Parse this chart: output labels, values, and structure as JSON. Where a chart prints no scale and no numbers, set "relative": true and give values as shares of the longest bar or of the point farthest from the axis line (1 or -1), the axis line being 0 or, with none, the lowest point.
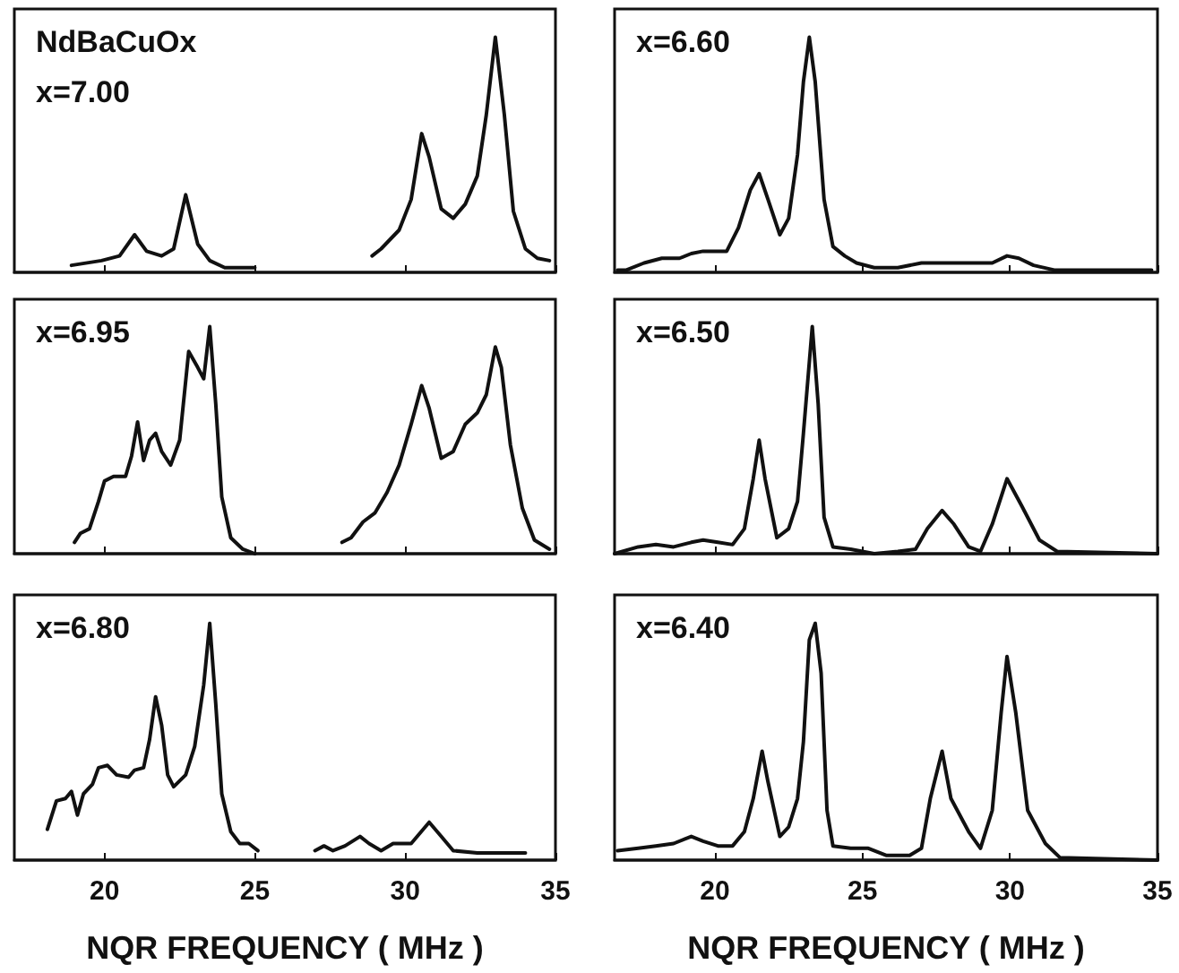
{
  "chart_data": [
    {
      "type": "line",
      "relative": true,
      "annotations": [
        "NdBaCuOx",
        "x=7.00"
      ],
      "xlim": [
        17,
        35
      ],
      "xticks": [
        20,
        25,
        30,
        35
      ],
      "tick_labels": false,
      "marker": "none",
      "x": [
        18.9,
        19.9,
        20.5,
        21.0,
        21.4,
        21.9,
        22.3,
        22.7,
        23.1,
        23.5,
        24.0,
        25.0,
        27.0,
        28.9,
        29.2,
        29.8,
        30.2,
        30.55,
        30.8,
        31.2,
        31.6,
        32.0,
        32.4,
        32.7,
        33.0,
        33.3,
        33.6,
        34.0,
        34.4,
        34.8
      ],
      "series": [
        {
          "color": "#111111",
          "values": [
            0.03,
            0.05,
            0.07,
            0.16,
            0.09,
            0.07,
            0.1,
            0.33,
            0.12,
            0.05,
            0.02,
            0.02,
            null,
            0.07,
            0.1,
            0.18,
            0.31,
            0.59,
            0.49,
            0.27,
            0.23,
            0.29,
            0.41,
            0.67,
            1,
            0.67,
            0.26,
            0.1,
            0.06,
            0.05
          ]
        }
      ]
    },
    {
      "type": "line",
      "relative": true,
      "annotations": [
        "x=6.60"
      ],
      "xlim": [
        16.6,
        35
      ],
      "xticks": [
        20,
        25,
        30,
        35
      ],
      "tick_labels": false,
      "marker": "none",
      "x": [
        16.7,
        17.0,
        17.6,
        18.2,
        18.8,
        19.2,
        19.6,
        20.0,
        20.4,
        20.8,
        21.2,
        21.5,
        21.8,
        22.2,
        22.5,
        22.8,
        23.0,
        23.2,
        23.4,
        23.7,
        24.0,
        24.4,
        24.8,
        25.4,
        26.2,
        27.0,
        27.8,
        28.6,
        29.4,
        29.9,
        30.3,
        30.8,
        31.5,
        34.8
      ],
      "series": [
        {
          "color": "#111111",
          "values": [
            0.01,
            0.01,
            0.04,
            0.06,
            0.06,
            0.08,
            0.09,
            0.09,
            0.09,
            0.19,
            0.35,
            0.42,
            0.31,
            0.16,
            0.23,
            0.5,
            0.81,
            1,
            0.81,
            0.31,
            0.11,
            0.07,
            0.04,
            0.02,
            0.02,
            0.04,
            0.04,
            0.04,
            0.04,
            0.07,
            0.06,
            0.03,
            0.01,
            0.01
          ]
        }
      ]
    },
    {
      "type": "line",
      "relative": true,
      "annotations": [
        "x=6.95"
      ],
      "xlim": [
        17,
        35
      ],
      "xticks": [
        20,
        25,
        30,
        35
      ],
      "tick_labels": false,
      "marker": "none",
      "x": [
        19.0,
        19.2,
        19.5,
        19.8,
        20.0,
        20.3,
        20.7,
        20.9,
        21.1,
        21.3,
        21.5,
        21.7,
        21.9,
        22.2,
        22.5,
        22.8,
        23.1,
        23.3,
        23.5,
        23.7,
        23.9,
        24.2,
        24.6,
        25.0,
        26.5,
        27.9,
        28.2,
        28.6,
        29.0,
        29.4,
        29.8,
        30.2,
        30.55,
        30.8,
        31.2,
        31.6,
        32.0,
        32.4,
        32.7,
        33.0,
        33.2,
        33.5,
        33.9,
        34.3,
        34.8
      ],
      "series": [
        {
          "color": "#111111",
          "values": [
            0.05,
            0.09,
            0.11,
            0.23,
            0.32,
            0.34,
            0.34,
            0.43,
            0.58,
            0.41,
            0.5,
            0.53,
            0.45,
            0.39,
            0.5,
            0.89,
            0.82,
            0.77,
            1,
            0.66,
            0.25,
            0.07,
            0.02,
            0,
            null,
            0.05,
            0.07,
            0.14,
            0.18,
            0.27,
            0.39,
            0.57,
            0.74,
            0.64,
            0.42,
            0.45,
            0.57,
            0.62,
            0.7,
            0.91,
            0.82,
            0.48,
            0.2,
            0.06,
            0.02
          ]
        }
      ]
    },
    {
      "type": "line",
      "relative": true,
      "annotations": [
        "x=6.50"
      ],
      "xlim": [
        16.6,
        35
      ],
      "xticks": [
        20,
        25,
        30,
        35
      ],
      "tick_labels": false,
      "marker": "none",
      "x": [
        16.6,
        17.4,
        18.0,
        18.6,
        19.2,
        19.6,
        20.1,
        20.6,
        21.0,
        21.3,
        21.5,
        21.7,
        22.1,
        22.5,
        22.8,
        23.0,
        23.3,
        23.5,
        23.7,
        24.0,
        24.6,
        25.4,
        26.2,
        26.8,
        27.2,
        27.7,
        28.1,
        28.6,
        29.0,
        29.4,
        29.9,
        30.4,
        31.0,
        31.6,
        35.0
      ],
      "series": [
        {
          "color": "#111111",
          "values": [
            0,
            0.03,
            0.04,
            0.03,
            0.05,
            0.06,
            0.05,
            0.04,
            0.11,
            0.33,
            0.5,
            0.33,
            0.07,
            0.11,
            0.23,
            0.53,
            1,
            0.66,
            0.16,
            0.03,
            0.02,
            0,
            0.01,
            0.02,
            0.11,
            0.19,
            0.13,
            0.03,
            0.01,
            0.13,
            0.33,
            0.21,
            0.06,
            0.01,
            0
          ]
        }
      ]
    },
    {
      "type": "line",
      "relative": true,
      "annotations": [
        "x=6.80"
      ],
      "xlim": [
        17,
        35
      ],
      "xticks": [
        20,
        25,
        30,
        35
      ],
      "tick_labels": "x",
      "xlabel": "NQR FREQUENCY ( MHz )",
      "marker": "none",
      "x": [
        18.1,
        18.4,
        18.7,
        18.9,
        19.1,
        19.3,
        19.6,
        19.8,
        20.1,
        20.4,
        20.8,
        21.0,
        21.3,
        21.5,
        21.7,
        21.9,
        22.1,
        22.3,
        22.7,
        23.0,
        23.3,
        23.5,
        23.7,
        23.9,
        24.2,
        24.5,
        24.8,
        25.1,
        26.0,
        27.0,
        27.3,
        27.6,
        28.0,
        28.5,
        28.8,
        29.2,
        29.6,
        30.2,
        30.8,
        31.2,
        31.6,
        32.4,
        34.0
      ],
      "series": [
        {
          "color": "#111111",
          "values": [
            0.13,
            0.25,
            0.26,
            0.29,
            0.19,
            0.28,
            0.32,
            0.39,
            0.4,
            0.36,
            0.35,
            0.38,
            0.39,
            0.51,
            0.69,
            0.57,
            0.36,
            0.31,
            0.36,
            0.48,
            0.74,
            1,
            0.66,
            0.28,
            0.12,
            0.07,
            0.07,
            0.04,
            null,
            0.04,
            0.06,
            0.04,
            0.06,
            0.1,
            0.07,
            0.04,
            0.07,
            0.07,
            0.16,
            0.1,
            0.04,
            0.03,
            0.03
          ]
        }
      ]
    },
    {
      "type": "line",
      "relative": true,
      "annotations": [
        "x=6.40"
      ],
      "xlim": [
        16.6,
        35
      ],
      "xticks": [
        20,
        25,
        30,
        35
      ],
      "tick_labels": "x",
      "xlabel": "NQR FREQUENCY ( MHz )",
      "marker": "none",
      "x": [
        16.7,
        17.4,
        18.0,
        18.6,
        19.2,
        19.6,
        20.1,
        20.6,
        21.0,
        21.3,
        21.6,
        21.8,
        22.2,
        22.5,
        22.8,
        23.0,
        23.2,
        23.4,
        23.6,
        23.8,
        24.0,
        24.6,
        25.2,
        25.8,
        26.6,
        27.0,
        27.3,
        27.7,
        28.0,
        28.6,
        29.0,
        29.4,
        29.7,
        29.9,
        30.2,
        30.6,
        31.2,
        31.7,
        35.0
      ],
      "series": [
        {
          "color": "#111111",
          "values": [
            0.04,
            0.05,
            0.06,
            0.07,
            0.1,
            0.08,
            0.06,
            0.06,
            0.12,
            0.26,
            0.46,
            0.33,
            0.1,
            0.14,
            0.26,
            0.5,
            0.93,
            1,
            0.79,
            0.21,
            0.06,
            0.05,
            0.05,
            0.02,
            0.02,
            0.05,
            0.26,
            0.46,
            0.26,
            0.12,
            0.05,
            0.21,
            0.62,
            0.86,
            0.62,
            0.21,
            0.07,
            0.01,
            0
          ]
        }
      ]
    }
  ]
}
